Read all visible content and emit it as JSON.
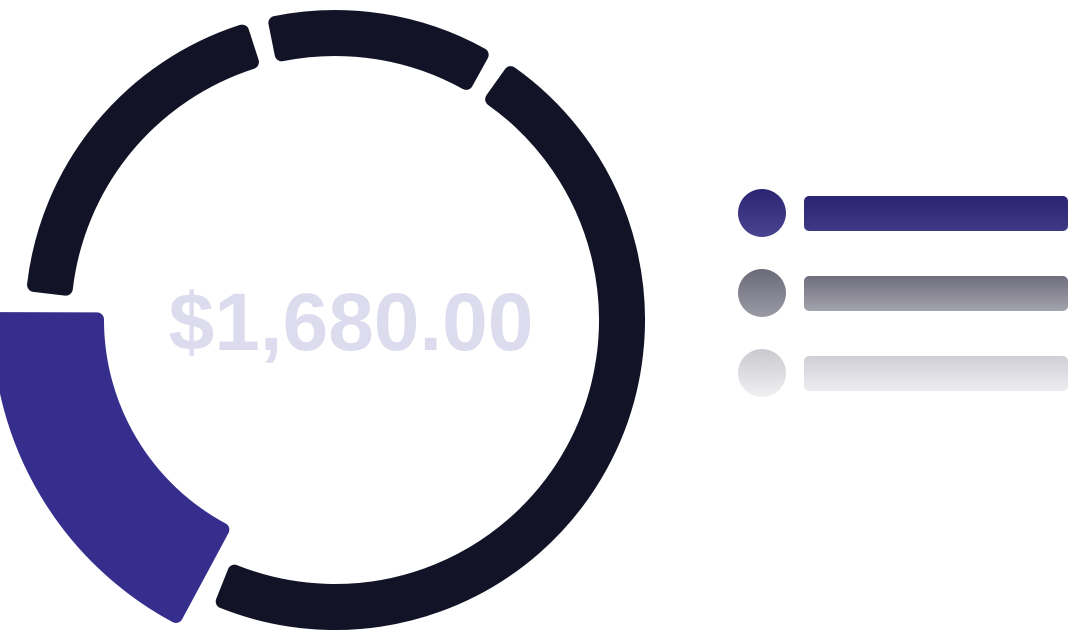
{
  "chart_data": {
    "type": "pie",
    "variant": "donut",
    "center_label": "$1,680.00",
    "slices": [
      {
        "value": 19,
        "color": "#362e8c"
      },
      {
        "value": 20,
        "color": "#121326"
      },
      {
        "value": 13,
        "color": "#121326"
      },
      {
        "value": 48,
        "color": "#121326"
      }
    ],
    "legend": {
      "placement": "right",
      "entries": [
        {
          "color": "#2b2472"
        },
        {
          "color": "#7a7a86"
        },
        {
          "color": "#dcdce0"
        }
      ]
    }
  },
  "colors": {
    "accent": "#362e8c",
    "ring": "#121326",
    "center_text": "#dcdcee"
  }
}
